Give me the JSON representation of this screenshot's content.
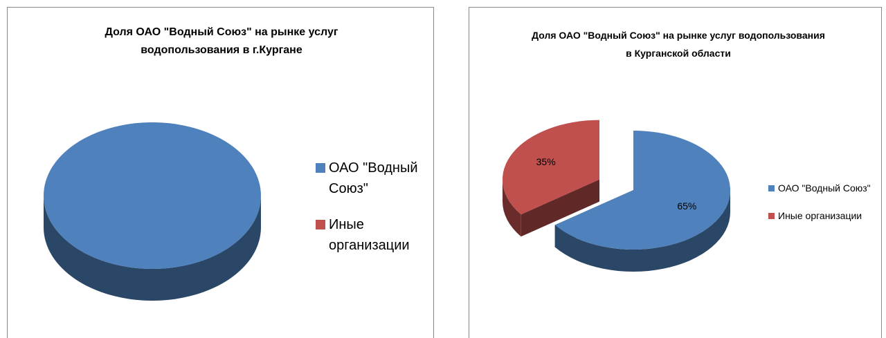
{
  "chart_data": [
    {
      "type": "pie",
      "title": "Доля ОАО \"Водный Союз\" на рынке услуг\nводопользования в г.Кургане",
      "categories": [
        "ОАО \"Водный Союз\"",
        "Иные организации"
      ],
      "values": [
        100,
        0
      ],
      "colors": [
        "#4f81bd",
        "#c0504d"
      ]
    },
    {
      "type": "pie",
      "title": "Доля ОАО \"Водный Союз\" на рынке услуг водопользования\nв Курганской области",
      "categories": [
        "ОАО \"Водный Союз\"",
        "Иные организации"
      ],
      "values": [
        65,
        35
      ],
      "value_labels": [
        "65%",
        "35%"
      ],
      "colors": [
        "#4f81bd",
        "#c0504d"
      ]
    }
  ]
}
